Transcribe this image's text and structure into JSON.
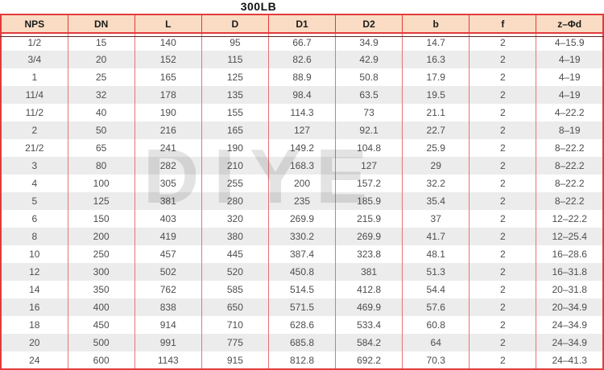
{
  "title": "300LB",
  "watermark": "DIYE",
  "colors": {
    "header_bg": "#f9dcc3",
    "border_red": "#e23b3b",
    "grid_red": "#e87272",
    "stripe_gray": "#ececec",
    "cell_text": "#4d4d4d",
    "header_text": "#1a1a1a",
    "header_dark_underline": "#5a2424",
    "watermark_gray": "#dadada"
  },
  "table": {
    "columns": [
      "NPS",
      "DN",
      "L",
      "D",
      "D1",
      "D2",
      "b",
      "f",
      "z–Φd"
    ],
    "rows": [
      [
        "1/2",
        "15",
        "140",
        "95",
        "66.7",
        "34.9",
        "14.7",
        "2",
        "4–15.9"
      ],
      [
        "3/4",
        "20",
        "152",
        "115",
        "82.6",
        "42.9",
        "16.3",
        "2",
        "4–19"
      ],
      [
        "1",
        "25",
        "165",
        "125",
        "88.9",
        "50.8",
        "17.9",
        "2",
        "4–19"
      ],
      [
        "11/4",
        "32",
        "178",
        "135",
        "98.4",
        "63.5",
        "19.5",
        "2",
        "4–19"
      ],
      [
        "11/2",
        "40",
        "190",
        "155",
        "114.3",
        "73",
        "21.1",
        "2",
        "4–22.2"
      ],
      [
        "2",
        "50",
        "216",
        "165",
        "127",
        "92.1",
        "22.7",
        "2",
        "8–19"
      ],
      [
        "21/2",
        "65",
        "241",
        "190",
        "149.2",
        "104.8",
        "25.9",
        "2",
        "8–22.2"
      ],
      [
        "3",
        "80",
        "282",
        "210",
        "168.3",
        "127",
        "29",
        "2",
        "8–22.2"
      ],
      [
        "4",
        "100",
        "305",
        "255",
        "200",
        "157.2",
        "32.2",
        "2",
        "8–22.2"
      ],
      [
        "5",
        "125",
        "381",
        "280",
        "235",
        "185.9",
        "35.4",
        "2",
        "8–22.2"
      ],
      [
        "6",
        "150",
        "403",
        "320",
        "269.9",
        "215.9",
        "37",
        "2",
        "12–22.2"
      ],
      [
        "8",
        "200",
        "419",
        "380",
        "330.2",
        "269.9",
        "41.7",
        "2",
        "12–25.4"
      ],
      [
        "10",
        "250",
        "457",
        "445",
        "387.4",
        "323.8",
        "48.1",
        "2",
        "16–28.6"
      ],
      [
        "12",
        "300",
        "502",
        "520",
        "450.8",
        "381",
        "51.3",
        "2",
        "16–31.8"
      ],
      [
        "14",
        "350",
        "762",
        "585",
        "514.5",
        "412.8",
        "54.4",
        "2",
        "20–31.8"
      ],
      [
        "16",
        "400",
        "838",
        "650",
        "571.5",
        "469.9",
        "57.6",
        "2",
        "20–34.9"
      ],
      [
        "18",
        "450",
        "914",
        "710",
        "628.6",
        "533.4",
        "60.8",
        "2",
        "24–34.9"
      ],
      [
        "20",
        "500",
        "991",
        "775",
        "685.8",
        "584.2",
        "64",
        "2",
        "24–34.9"
      ],
      [
        "24",
        "600",
        "1143",
        "915",
        "812.8",
        "692.2",
        "70.3",
        "2",
        "24–41.3"
      ]
    ]
  }
}
